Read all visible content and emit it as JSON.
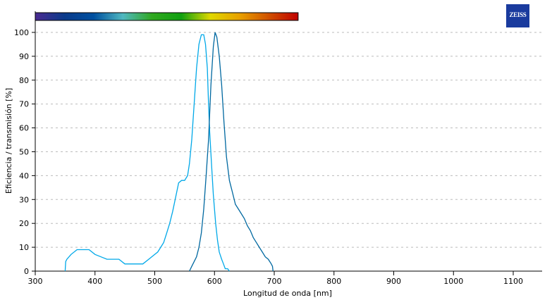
{
  "logo": {
    "text": "ZEISS",
    "color": "#1a3b9e"
  },
  "chart_data": {
    "type": "line",
    "title": "",
    "xlabel": "Longitud de onda [nm]",
    "ylabel": "Eficiencia / transmisión [%]",
    "xlim": [
      300,
      1150
    ],
    "ylim": [
      0,
      100
    ],
    "xticks": [
      300,
      400,
      500,
      600,
      700,
      800,
      900,
      1000,
      1100
    ],
    "yticks": [
      0,
      10,
      20,
      30,
      40,
      50,
      60,
      70,
      80,
      90,
      100
    ],
    "grid": "horizontal dashed",
    "spectrum_bar": {
      "range": [
        300,
        740
      ],
      "colors": [
        "#4a2a90",
        "#0a3a8a",
        "#0050a0",
        "#50b8c0",
        "#30a820",
        "#10a010",
        "#e0d800",
        "#e8a000",
        "#d05000",
        "#c00000"
      ]
    },
    "series": [
      {
        "color": "#00a8e8",
        "x": [
          350,
          351,
          353,
          360,
          370,
          390,
          400,
          410,
          420,
          440,
          450,
          480,
          490,
          500,
          505,
          510,
          515,
          520,
          525,
          530,
          535,
          540,
          545,
          550,
          555,
          558,
          562,
          566,
          570,
          574,
          578,
          582,
          585,
          588,
          590,
          592,
          595,
          598,
          602,
          605,
          608,
          612,
          615,
          618,
          622,
          625
        ],
        "y": [
          0,
          4,
          5,
          7,
          9,
          9,
          7,
          6,
          5,
          5,
          3,
          3,
          5,
          7,
          8,
          10,
          12,
          16,
          20,
          25,
          31,
          37,
          38,
          38,
          40,
          45,
          55,
          70,
          85,
          95,
          99,
          99,
          95,
          85,
          70,
          58,
          45,
          32,
          20,
          13,
          8,
          5,
          3,
          1,
          1,
          0
        ]
      },
      {
        "color": "#0068a0",
        "x": [
          558,
          562,
          566,
          570,
          574,
          578,
          582,
          586,
          590,
          594,
          598,
          601,
          604,
          608,
          612,
          616,
          620,
          625,
          630,
          635,
          640,
          645,
          650,
          655,
          660,
          665,
          670,
          675,
          680,
          685,
          690,
          695,
          697,
          698
        ],
        "y": [
          0,
          2,
          4,
          6,
          10,
          16,
          26,
          40,
          55,
          78,
          94,
          100,
          98,
          90,
          78,
          62,
          48,
          38,
          33,
          28,
          26,
          24,
          22,
          19,
          17,
          14,
          12,
          10,
          8,
          6,
          5,
          3,
          2,
          0
        ]
      }
    ]
  }
}
